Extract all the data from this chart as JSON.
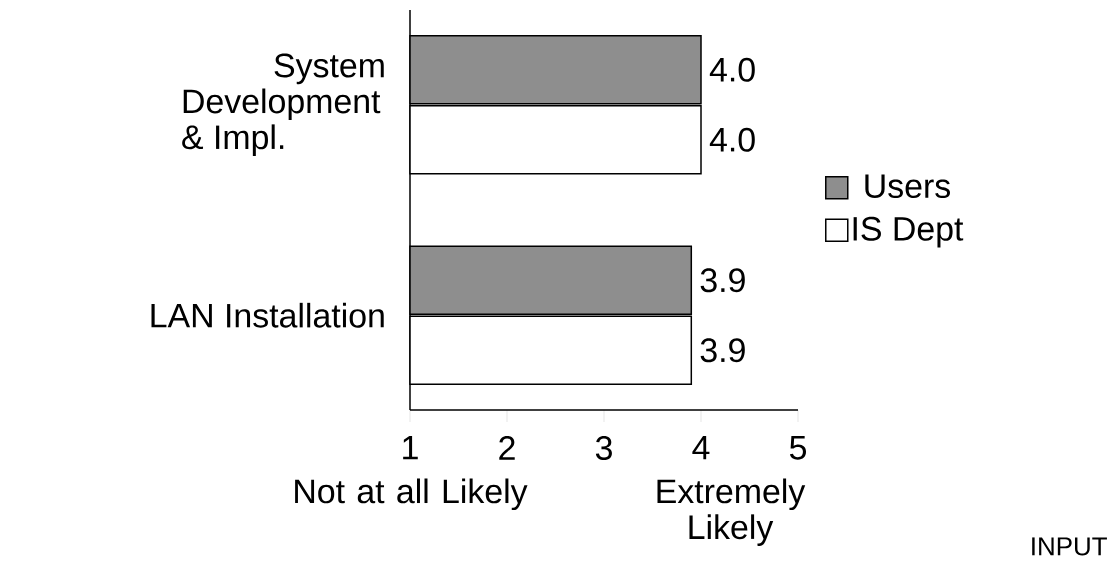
{
  "chart_data": {
    "type": "bar",
    "orientation": "horizontal",
    "categories": [
      "System Development & Impl.",
      "LAN Installation"
    ],
    "series": [
      {
        "name": "Users",
        "color": "#8e8e8e",
        "values": [
          4.0,
          3.9
        ],
        "value_labels": [
          "4.0",
          "3.9"
        ]
      },
      {
        "name": "IS Dept",
        "color": "#ffffff",
        "values": [
          4.0,
          3.9
        ],
        "value_labels": [
          "4.0",
          "3.9"
        ]
      }
    ],
    "xlim": [
      1,
      5
    ],
    "xticks": [
      1,
      2,
      3,
      4,
      5
    ],
    "legend": "right",
    "grid": false,
    "annotations": [
      "Not at all Likely",
      "Extremely Likely",
      "INPUT"
    ]
  }
}
